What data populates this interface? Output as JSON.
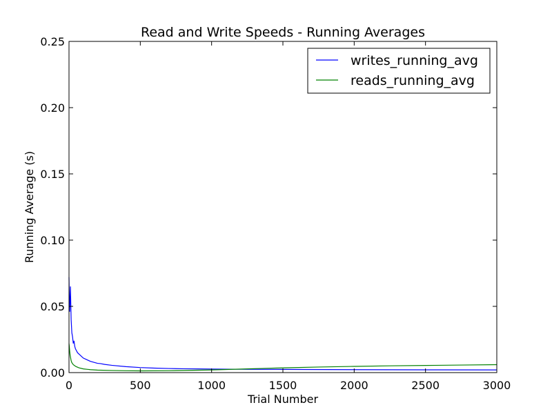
{
  "chart_data": {
    "type": "line",
    "title": "Read and Write Speeds - Running Averages",
    "xlabel": "Trial Number",
    "ylabel": "Running Average (s)",
    "xlim": [
      0,
      3000
    ],
    "ylim": [
      0,
      0.25
    ],
    "xticks": [
      0,
      500,
      1000,
      1500,
      2000,
      2500,
      3000
    ],
    "xtick_labels": [
      "0",
      "500",
      "1000",
      "1500",
      "2000",
      "2500",
      "3000"
    ],
    "yticks": [
      0,
      0.05,
      0.1,
      0.15,
      0.2,
      0.25
    ],
    "ytick_labels": [
      "0.00",
      "0.05",
      "0.10",
      "0.15",
      "0.20",
      "0.25"
    ],
    "grid": false,
    "legend_position": "top-right",
    "series": [
      {
        "name": "writes_running_avg",
        "color": "#0000ff",
        "x": [
          0,
          2,
          5,
          10,
          15,
          20,
          25,
          30,
          35,
          40,
          45,
          50,
          60,
          80,
          100,
          150,
          200,
          220,
          250,
          300,
          400,
          500,
          600,
          700,
          800,
          900,
          1000,
          1200,
          1500,
          2000,
          2500,
          3000
        ],
        "y": [
          0.072,
          0.058,
          0.046,
          0.065,
          0.04,
          0.03,
          0.027,
          0.022,
          0.024,
          0.02,
          0.018,
          0.017,
          0.015,
          0.013,
          0.011,
          0.0085,
          0.007,
          0.0068,
          0.0062,
          0.0055,
          0.0045,
          0.0038,
          0.0034,
          0.0031,
          0.0029,
          0.0028,
          0.0027,
          0.0025,
          0.0024,
          0.0022,
          0.0021,
          0.002
        ]
      },
      {
        "name": "reads_running_avg",
        "color": "#008000",
        "x": [
          0,
          2,
          5,
          8,
          10,
          15,
          20,
          30,
          40,
          50,
          70,
          100,
          150,
          200,
          300,
          400,
          500,
          700,
          1000,
          1250,
          1500,
          1750,
          2000,
          2250,
          2500,
          2750,
          3000
        ],
        "y": [
          0.022,
          0.02,
          0.016,
          0.013,
          0.012,
          0.009,
          0.0075,
          0.006,
          0.0052,
          0.0045,
          0.0036,
          0.0028,
          0.0022,
          0.0019,
          0.0016,
          0.0014,
          0.0013,
          0.0014,
          0.002,
          0.0028,
          0.0036,
          0.0042,
          0.0047,
          0.0051,
          0.0054,
          0.0057,
          0.006
        ]
      }
    ]
  }
}
